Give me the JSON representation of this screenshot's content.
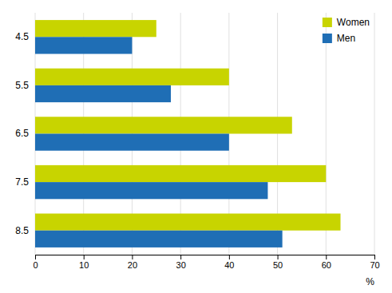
{
  "chart_data": {
    "type": "bar",
    "orientation": "horizontal",
    "categories": [
      "4.5",
      "5.5",
      "6.5",
      "7.5",
      "8.5"
    ],
    "series": [
      {
        "name": "Women",
        "color": "#c8d400",
        "values": [
          25,
          40,
          53,
          60,
          63
        ]
      },
      {
        "name": "Men",
        "color": "#1f6eb5",
        "values": [
          20,
          28,
          40,
          48,
          51
        ]
      }
    ],
    "xlabel": "%",
    "xlim": [
      0,
      70
    ],
    "xticks": [
      0,
      10,
      20,
      30,
      40,
      50,
      60,
      70
    ],
    "grid": true,
    "legend": "upper right"
  }
}
